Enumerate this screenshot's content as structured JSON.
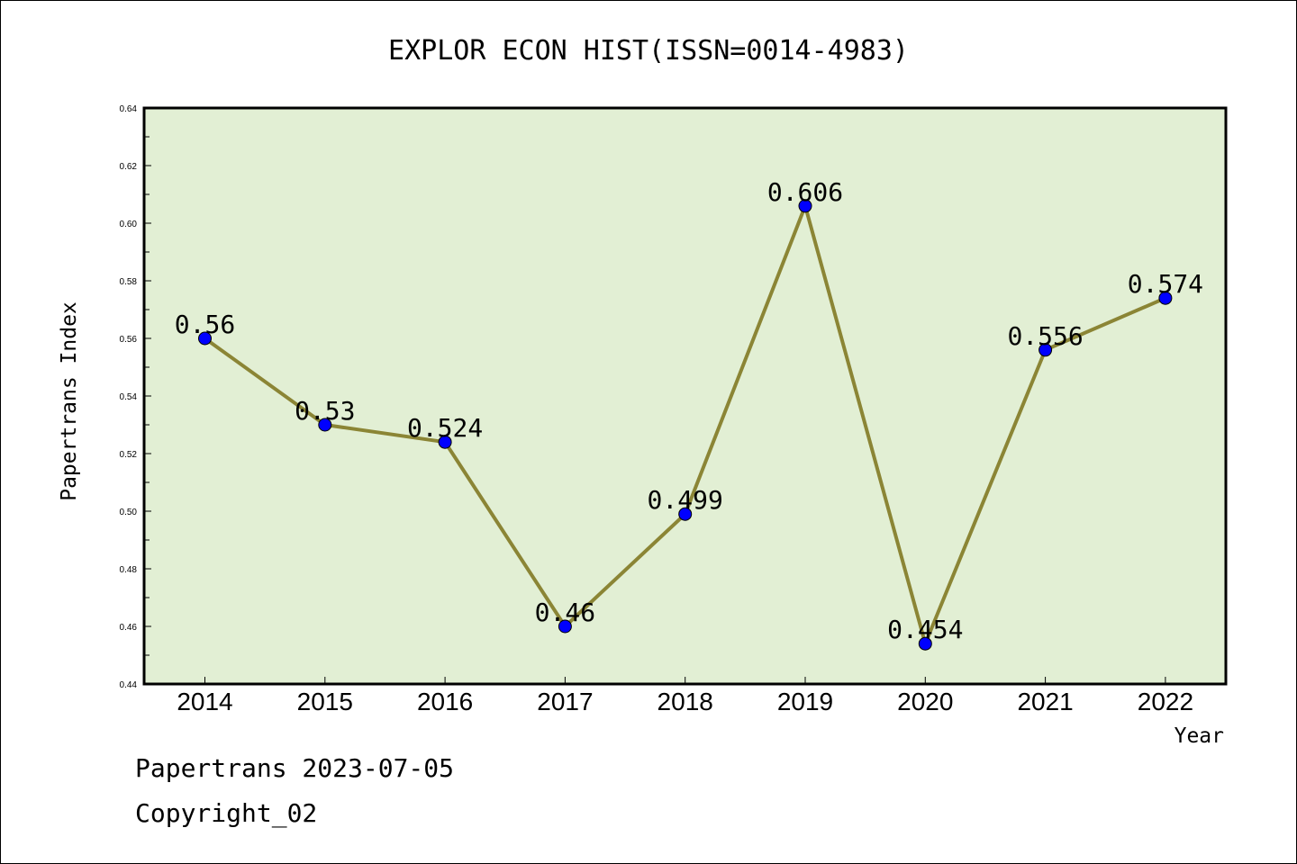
{
  "chart_data": {
    "type": "line",
    "title": "EXPLOR ECON HIST(ISSN=0014-4983)",
    "xlabel": "Year",
    "ylabel": "Papertrans Index",
    "categories": [
      "2014",
      "2015",
      "2016",
      "2017",
      "2018",
      "2019",
      "2020",
      "2021",
      "2022"
    ],
    "values": [
      0.56,
      0.53,
      0.524,
      0.46,
      0.499,
      0.606,
      0.454,
      0.556,
      0.574
    ],
    "data_labels": [
      "0.56",
      "0.53",
      "0.524",
      "0.46",
      "0.499",
      "0.606",
      "0.454",
      "0.556",
      "0.574"
    ],
    "ylim": [
      0.44,
      0.64
    ],
    "yticks": [
      "0.44",
      "0.46",
      "0.48",
      "0.50",
      "0.52",
      "0.54",
      "0.56",
      "0.58",
      "0.60",
      "0.62",
      "0.64"
    ],
    "grid": false,
    "colors": {
      "plot_background": "#e2efd4",
      "line": "#8b8535",
      "marker": "#0000ff"
    }
  },
  "footer": {
    "line1": "Papertrans 2023-07-05",
    "line2": "Copyright_02"
  }
}
